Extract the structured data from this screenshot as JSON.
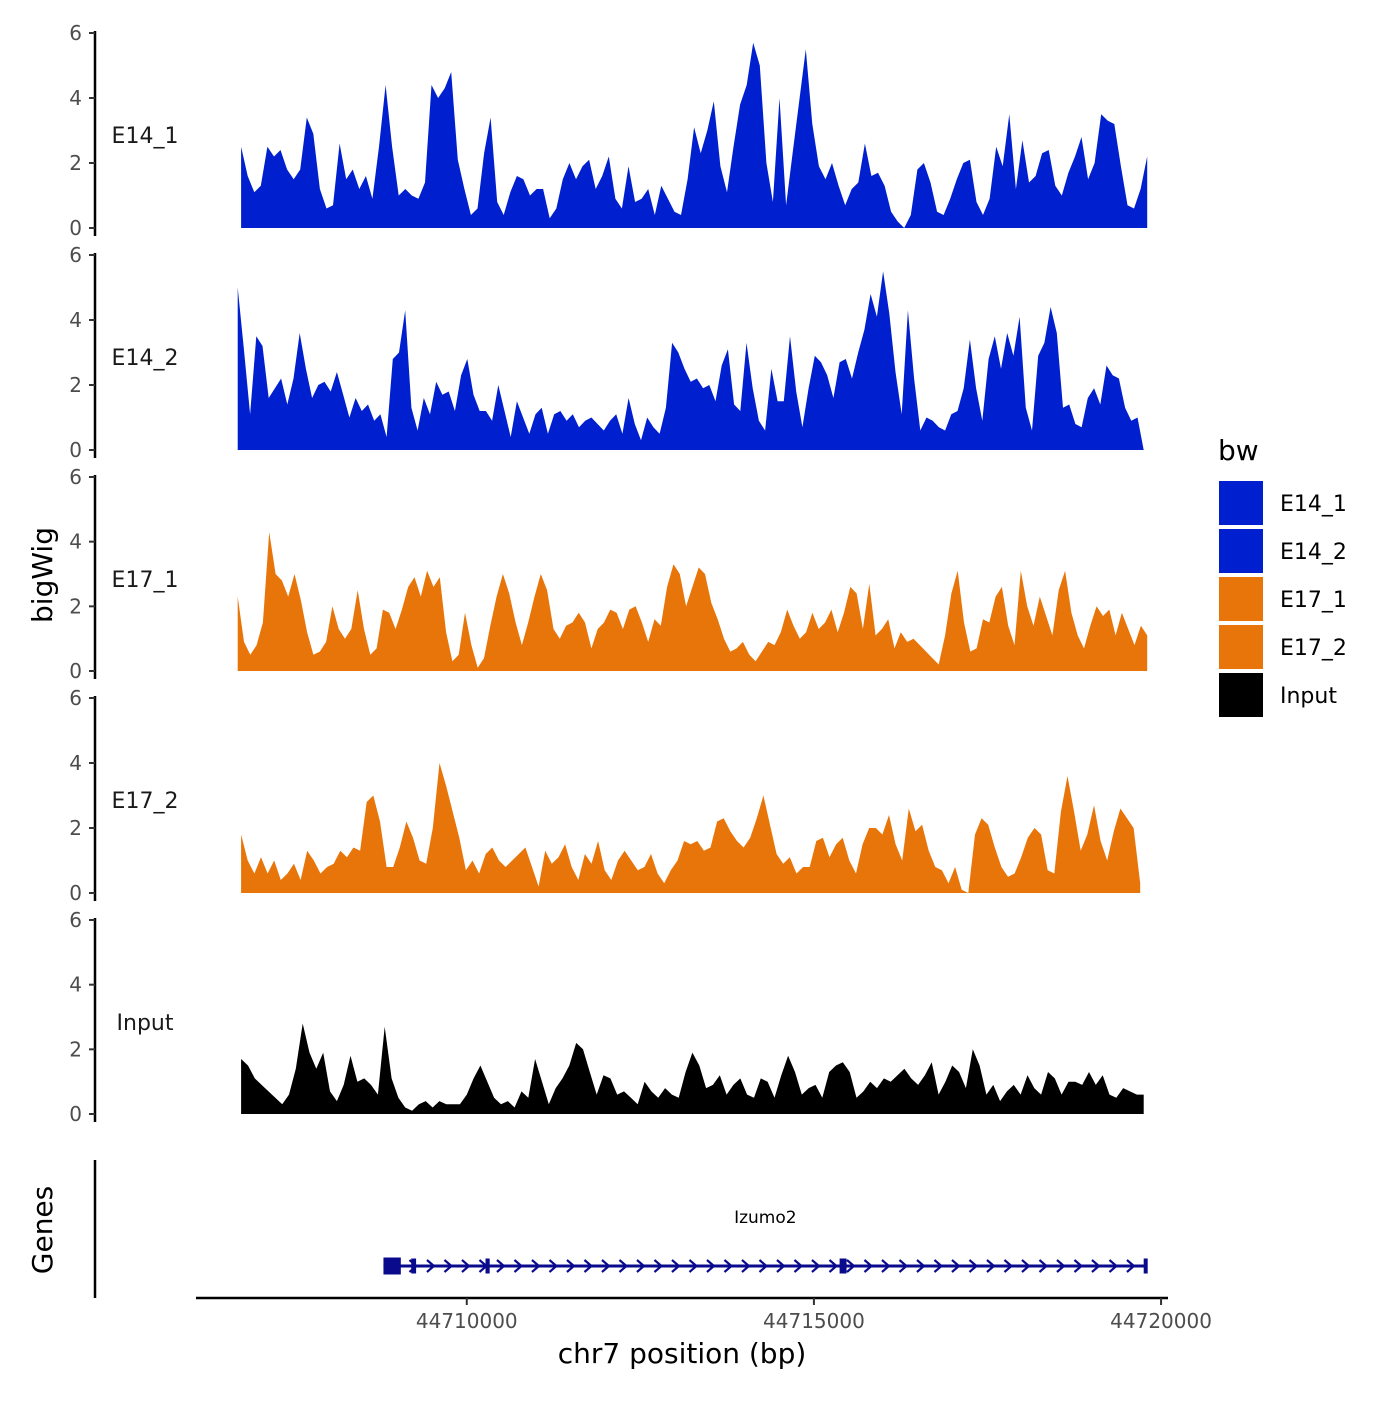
{
  "chart_data": {
    "type": "area",
    "title": "",
    "ylabel": "bigWig",
    "xlabel": "chr7 position (bp)",
    "ylim": [
      0,
      6
    ],
    "y_ticks": [
      "0",
      "2",
      "4",
      "6"
    ],
    "xlim": [
      44706100,
      44720100
    ],
    "x_ticks": [
      {
        "value": 44710000,
        "label": "44710000"
      },
      {
        "value": 44715000,
        "label": "44715000"
      },
      {
        "value": 44720000,
        "label": "44720000"
      }
    ],
    "legend": {
      "title": "bw",
      "position": "right",
      "entries": [
        {
          "label": "E14_1",
          "color": "#0020D0"
        },
        {
          "label": "E14_2",
          "color": "#0020D0"
        },
        {
          "label": "E17_1",
          "color": "#E87509"
        },
        {
          "label": "E17_2",
          "color": "#E87509"
        },
        {
          "label": "Input",
          "color": "#000000"
        }
      ]
    },
    "series": [
      {
        "name": "E14_1",
        "color": "#0020D0",
        "x_start": 44706750,
        "x_end": 44719800,
        "values": [
          2.5,
          1.6,
          1.1,
          1.3,
          2.5,
          2.2,
          2.4,
          1.8,
          1.5,
          1.8,
          3.4,
          2.9,
          1.2,
          0.6,
          0.7,
          2.6,
          1.5,
          1.8,
          1.2,
          1.6,
          0.9,
          2.5,
          4.4,
          2.5,
          1.0,
          1.2,
          1.0,
          0.9,
          1.4,
          4.4,
          4.0,
          4.3,
          4.8,
          2.1,
          1.2,
          0.4,
          0.6,
          2.3,
          3.4,
          0.8,
          0.4,
          1.1,
          1.6,
          1.5,
          1.0,
          1.2,
          1.2,
          0.3,
          0.6,
          1.5,
          2.0,
          1.5,
          1.9,
          2.1,
          1.2,
          1.6,
          2.2,
          0.9,
          0.6,
          1.9,
          0.8,
          0.9,
          1.2,
          0.4,
          1.3,
          0.9,
          0.5,
          0.4,
          1.5,
          3.1,
          2.3,
          3.0,
          3.9,
          1.9,
          1.1,
          2.5,
          3.8,
          4.4,
          5.7,
          5.0,
          2.0,
          0.8,
          4.0,
          0.7,
          2.3,
          3.9,
          5.5,
          3.2,
          1.9,
          1.5,
          2.0,
          1.3,
          0.7,
          1.2,
          1.4,
          2.6,
          1.6,
          1.7,
          1.3,
          0.5,
          0.2,
          0.0,
          0.4,
          1.8,
          2.0,
          1.4,
          0.5,
          0.4,
          0.9,
          1.5,
          2.0,
          2.1,
          0.8,
          0.4,
          0.9,
          2.5,
          1.9,
          3.5,
          1.2,
          2.7,
          1.4,
          1.6,
          2.3,
          2.4,
          1.3,
          1.0,
          1.7,
          2.2,
          2.8,
          1.5,
          2.0,
          3.5,
          3.3,
          3.2,
          1.9,
          0.7,
          0.6,
          1.2,
          2.2
        ]
      },
      {
        "name": "E14_2",
        "color": "#0020D0",
        "x_start": 44706700,
        "x_end": 44719750,
        "values": [
          5.0,
          3.1,
          1.1,
          3.5,
          3.2,
          1.6,
          1.9,
          2.2,
          1.4,
          2.2,
          3.6,
          2.5,
          1.6,
          2.0,
          2.1,
          1.8,
          2.4,
          1.7,
          1.0,
          1.6,
          1.2,
          1.4,
          0.9,
          1.1,
          0.4,
          2.8,
          3.0,
          4.3,
          1.3,
          0.6,
          1.6,
          1.1,
          2.1,
          1.7,
          1.8,
          1.2,
          2.3,
          2.8,
          1.7,
          1.2,
          1.2,
          0.9,
          2.0,
          1.2,
          0.4,
          1.5,
          1.0,
          0.5,
          1.1,
          1.3,
          0.5,
          1.1,
          1.2,
          0.9,
          1.1,
          0.7,
          0.9,
          1.0,
          0.8,
          0.6,
          0.9,
          1.1,
          0.5,
          1.6,
          0.8,
          0.3,
          1.0,
          0.7,
          0.5,
          1.3,
          3.3,
          3.0,
          2.5,
          2.1,
          2.2,
          1.9,
          2.0,
          1.5,
          2.6,
          3.1,
          1.4,
          1.2,
          3.3,
          1.9,
          0.9,
          0.6,
          2.5,
          1.5,
          1.5,
          3.5,
          1.8,
          0.7,
          1.9,
          2.9,
          2.7,
          2.3,
          1.6,
          2.7,
          2.8,
          2.2,
          3.0,
          3.7,
          4.8,
          4.1,
          5.5,
          4.2,
          2.4,
          1.1,
          4.3,
          2.2,
          0.6,
          1.0,
          0.9,
          0.7,
          0.6,
          1.1,
          1.2,
          1.9,
          3.4,
          1.9,
          0.9,
          2.8,
          3.5,
          2.5,
          3.6,
          2.9,
          4.1,
          1.3,
          0.6,
          2.9,
          3.3,
          4.4,
          3.6,
          1.3,
          1.4,
          0.8,
          0.7,
          1.6,
          1.9,
          1.4,
          2.6,
          2.3,
          2.2,
          1.3,
          0.9,
          1.0,
          0.0
        ]
      },
      {
        "name": "E17_1",
        "color": "#E87509",
        "x_start": 44706700,
        "x_end": 44719800,
        "values": [
          2.3,
          0.9,
          0.5,
          0.8,
          1.5,
          4.3,
          3.0,
          2.8,
          2.3,
          3.0,
          2.2,
          1.2,
          0.5,
          0.6,
          0.9,
          2.0,
          1.3,
          1.0,
          1.3,
          2.5,
          1.3,
          0.5,
          0.7,
          1.9,
          1.8,
          1.3,
          1.9,
          2.6,
          2.9,
          2.3,
          3.1,
          2.6,
          2.9,
          1.2,
          0.3,
          0.5,
          1.8,
          0.8,
          0.1,
          0.4,
          1.4,
          2.3,
          3.0,
          2.4,
          1.5,
          0.8,
          1.5,
          2.3,
          3.0,
          2.5,
          1.3,
          1.0,
          1.4,
          1.5,
          1.8,
          1.5,
          0.7,
          1.3,
          1.5,
          1.9,
          1.8,
          1.3,
          1.9,
          2.0,
          1.5,
          0.9,
          1.6,
          1.4,
          2.6,
          3.3,
          3.0,
          2.0,
          2.6,
          3.2,
          3.0,
          2.1,
          1.6,
          1.0,
          0.6,
          0.7,
          0.9,
          0.5,
          0.3,
          0.6,
          0.9,
          0.8,
          1.2,
          1.9,
          1.4,
          1.0,
          1.2,
          1.8,
          1.3,
          1.5,
          1.9,
          1.2,
          1.8,
          2.6,
          2.4,
          1.3,
          2.7,
          1.1,
          1.3,
          1.6,
          0.7,
          1.2,
          0.9,
          1.0,
          0.8,
          0.6,
          0.4,
          0.2,
          1.1,
          2.4,
          3.1,
          1.5,
          0.6,
          0.7,
          1.6,
          1.5,
          2.3,
          2.6,
          1.4,
          0.8,
          3.1,
          2.0,
          1.4,
          2.3,
          1.7,
          1.1,
          2.5,
          3.1,
          1.8,
          1.1,
          0.7,
          1.4,
          2.0,
          1.7,
          1.9,
          1.1,
          1.8,
          1.3,
          0.8,
          1.4,
          1.1
        ]
      },
      {
        "name": "E17_2",
        "color": "#E87509",
        "x_start": 44706750,
        "x_end": 44719700,
        "values": [
          1.8,
          1.0,
          0.6,
          1.1,
          0.6,
          1.0,
          0.4,
          0.6,
          0.9,
          0.4,
          1.3,
          1.0,
          0.6,
          0.8,
          0.9,
          1.3,
          1.1,
          1.4,
          1.3,
          2.8,
          3.0,
          2.2,
          0.8,
          0.8,
          1.4,
          2.2,
          1.7,
          1.0,
          0.9,
          2.0,
          4.0,
          3.3,
          2.5,
          1.7,
          0.7,
          1.0,
          0.6,
          1.2,
          1.4,
          1.0,
          0.8,
          1.0,
          1.2,
          1.4,
          0.8,
          0.2,
          1.3,
          0.9,
          1.1,
          1.5,
          0.8,
          0.4,
          1.2,
          0.9,
          1.6,
          0.7,
          0.4,
          1.0,
          1.3,
          1.0,
          0.7,
          0.8,
          1.2,
          0.6,
          0.3,
          0.7,
          1.0,
          1.6,
          1.5,
          1.6,
          1.3,
          1.4,
          2.2,
          2.3,
          1.9,
          1.6,
          1.4,
          1.7,
          2.3,
          3.0,
          2.1,
          1.2,
          0.9,
          1.1,
          0.6,
          0.8,
          0.8,
          1.6,
          1.7,
          1.1,
          1.5,
          1.7,
          1.0,
          0.6,
          1.5,
          2.0,
          2.0,
          1.8,
          2.4,
          1.5,
          1.0,
          2.6,
          1.9,
          2.1,
          1.3,
          0.8,
          0.7,
          0.3,
          0.8,
          0.1,
          0.0,
          1.8,
          2.3,
          2.1,
          1.4,
          0.8,
          0.5,
          0.6,
          1.1,
          1.7,
          2.0,
          1.8,
          0.7,
          0.6,
          2.5,
          3.6,
          2.5,
          1.3,
          1.8,
          2.7,
          1.6,
          1.0,
          1.9,
          2.6,
          2.3,
          2.0,
          0.3
        ]
      },
      {
        "name": "Input",
        "color": "#000000",
        "x_start": 44706750,
        "x_end": 44719750,
        "values": [
          1.7,
          1.5,
          1.1,
          0.9,
          0.7,
          0.5,
          0.3,
          0.6,
          1.4,
          2.8,
          1.9,
          1.4,
          1.9,
          0.7,
          0.4,
          0.9,
          1.8,
          1.0,
          1.1,
          0.9,
          0.6,
          2.7,
          1.1,
          0.5,
          0.2,
          0.1,
          0.3,
          0.4,
          0.2,
          0.4,
          0.3,
          0.3,
          0.3,
          0.6,
          1.1,
          1.5,
          1.0,
          0.5,
          0.3,
          0.4,
          0.2,
          0.7,
          0.5,
          1.7,
          1.0,
          0.3,
          0.8,
          1.1,
          1.5,
          2.2,
          2.0,
          1.3,
          0.6,
          1.2,
          1.1,
          0.6,
          0.7,
          0.5,
          0.3,
          1.0,
          0.7,
          0.5,
          0.8,
          0.6,
          0.5,
          1.3,
          1.9,
          1.5,
          0.8,
          0.9,
          1.2,
          0.6,
          0.9,
          1.1,
          0.6,
          0.5,
          1.1,
          1.0,
          0.5,
          1.2,
          1.8,
          1.3,
          0.6,
          0.8,
          0.9,
          0.5,
          1.3,
          1.5,
          1.6,
          1.3,
          0.5,
          0.7,
          1.0,
          0.8,
          1.1,
          1.0,
          1.2,
          1.4,
          1.1,
          0.9,
          1.2,
          1.6,
          0.6,
          1.0,
          1.5,
          1.3,
          0.8,
          2.0,
          1.5,
          0.6,
          0.9,
          0.4,
          0.7,
          0.9,
          0.6,
          1.2,
          0.8,
          0.6,
          1.3,
          1.1,
          0.6,
          1.0,
          1.0,
          0.9,
          1.3,
          0.9,
          1.2,
          0.6,
          0.5,
          0.8,
          0.7,
          0.6,
          0.6
        ]
      }
    ],
    "genes_track": {
      "ylabel": "Genes",
      "gene": {
        "name": "Izumo2",
        "strand": "+",
        "color": "#0A0A8C",
        "start": 44708800,
        "end": 44719800,
        "exons": [
          {
            "start": 44708800,
            "end": 44709050
          },
          {
            "start": 44709200,
            "end": 44709270
          },
          {
            "start": 44710270,
            "end": 44710330
          },
          {
            "start": 44715370,
            "end": 44715470
          },
          {
            "start": 44719750,
            "end": 44719800
          }
        ]
      }
    }
  }
}
